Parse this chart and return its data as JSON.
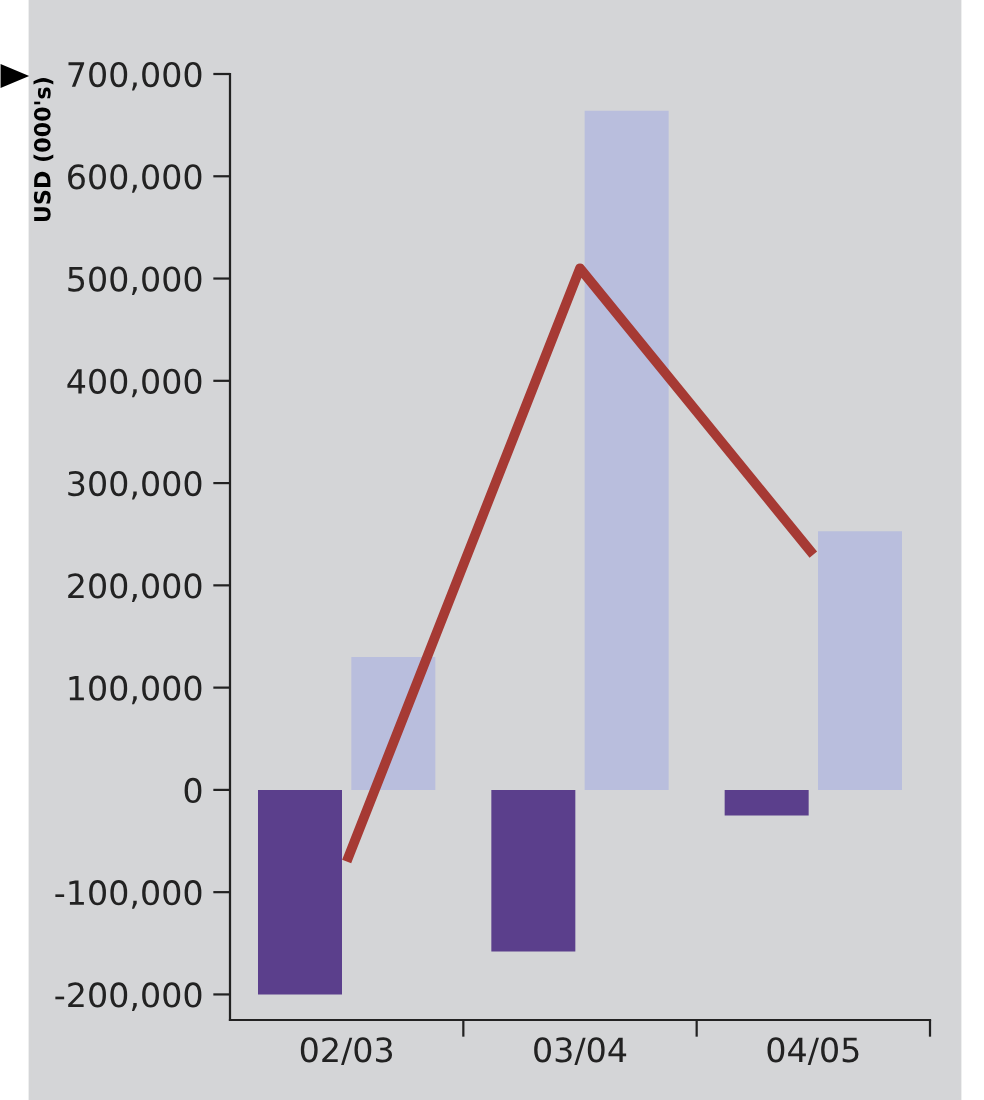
{
  "chart_data": {
    "type": "bar",
    "ylabel": "USD (000's)",
    "categories": [
      "02/03",
      "03/04",
      "04/05"
    ],
    "series": [
      {
        "color": "#5b3f8c",
        "values": [
          -200000,
          -158000,
          -25000
        ]
      },
      {
        "color": "#b9bedd",
        "values": [
          130000,
          664000,
          253000
        ]
      },
      {
        "type": "line",
        "color": "#a63a34",
        "values": [
          -70000,
          510000,
          230000
        ]
      }
    ],
    "ylim": [
      -225000,
      700000
    ],
    "yticks": [
      {
        "value": -200000,
        "label": "-200,000"
      },
      {
        "value": -100000,
        "label": "-100,000"
      },
      {
        "value": 0,
        "label": "0"
      },
      {
        "value": 100000,
        "label": "100,000"
      },
      {
        "value": 200000,
        "label": "200,000"
      },
      {
        "value": 300000,
        "label": "300,000"
      },
      {
        "value": 400000,
        "label": "400,000"
      },
      {
        "value": 500000,
        "label": "500,000"
      },
      {
        "value": 600000,
        "label": "600,000"
      },
      {
        "value": 700000,
        "label": "700,000"
      }
    ],
    "grid": false,
    "legend": false
  }
}
